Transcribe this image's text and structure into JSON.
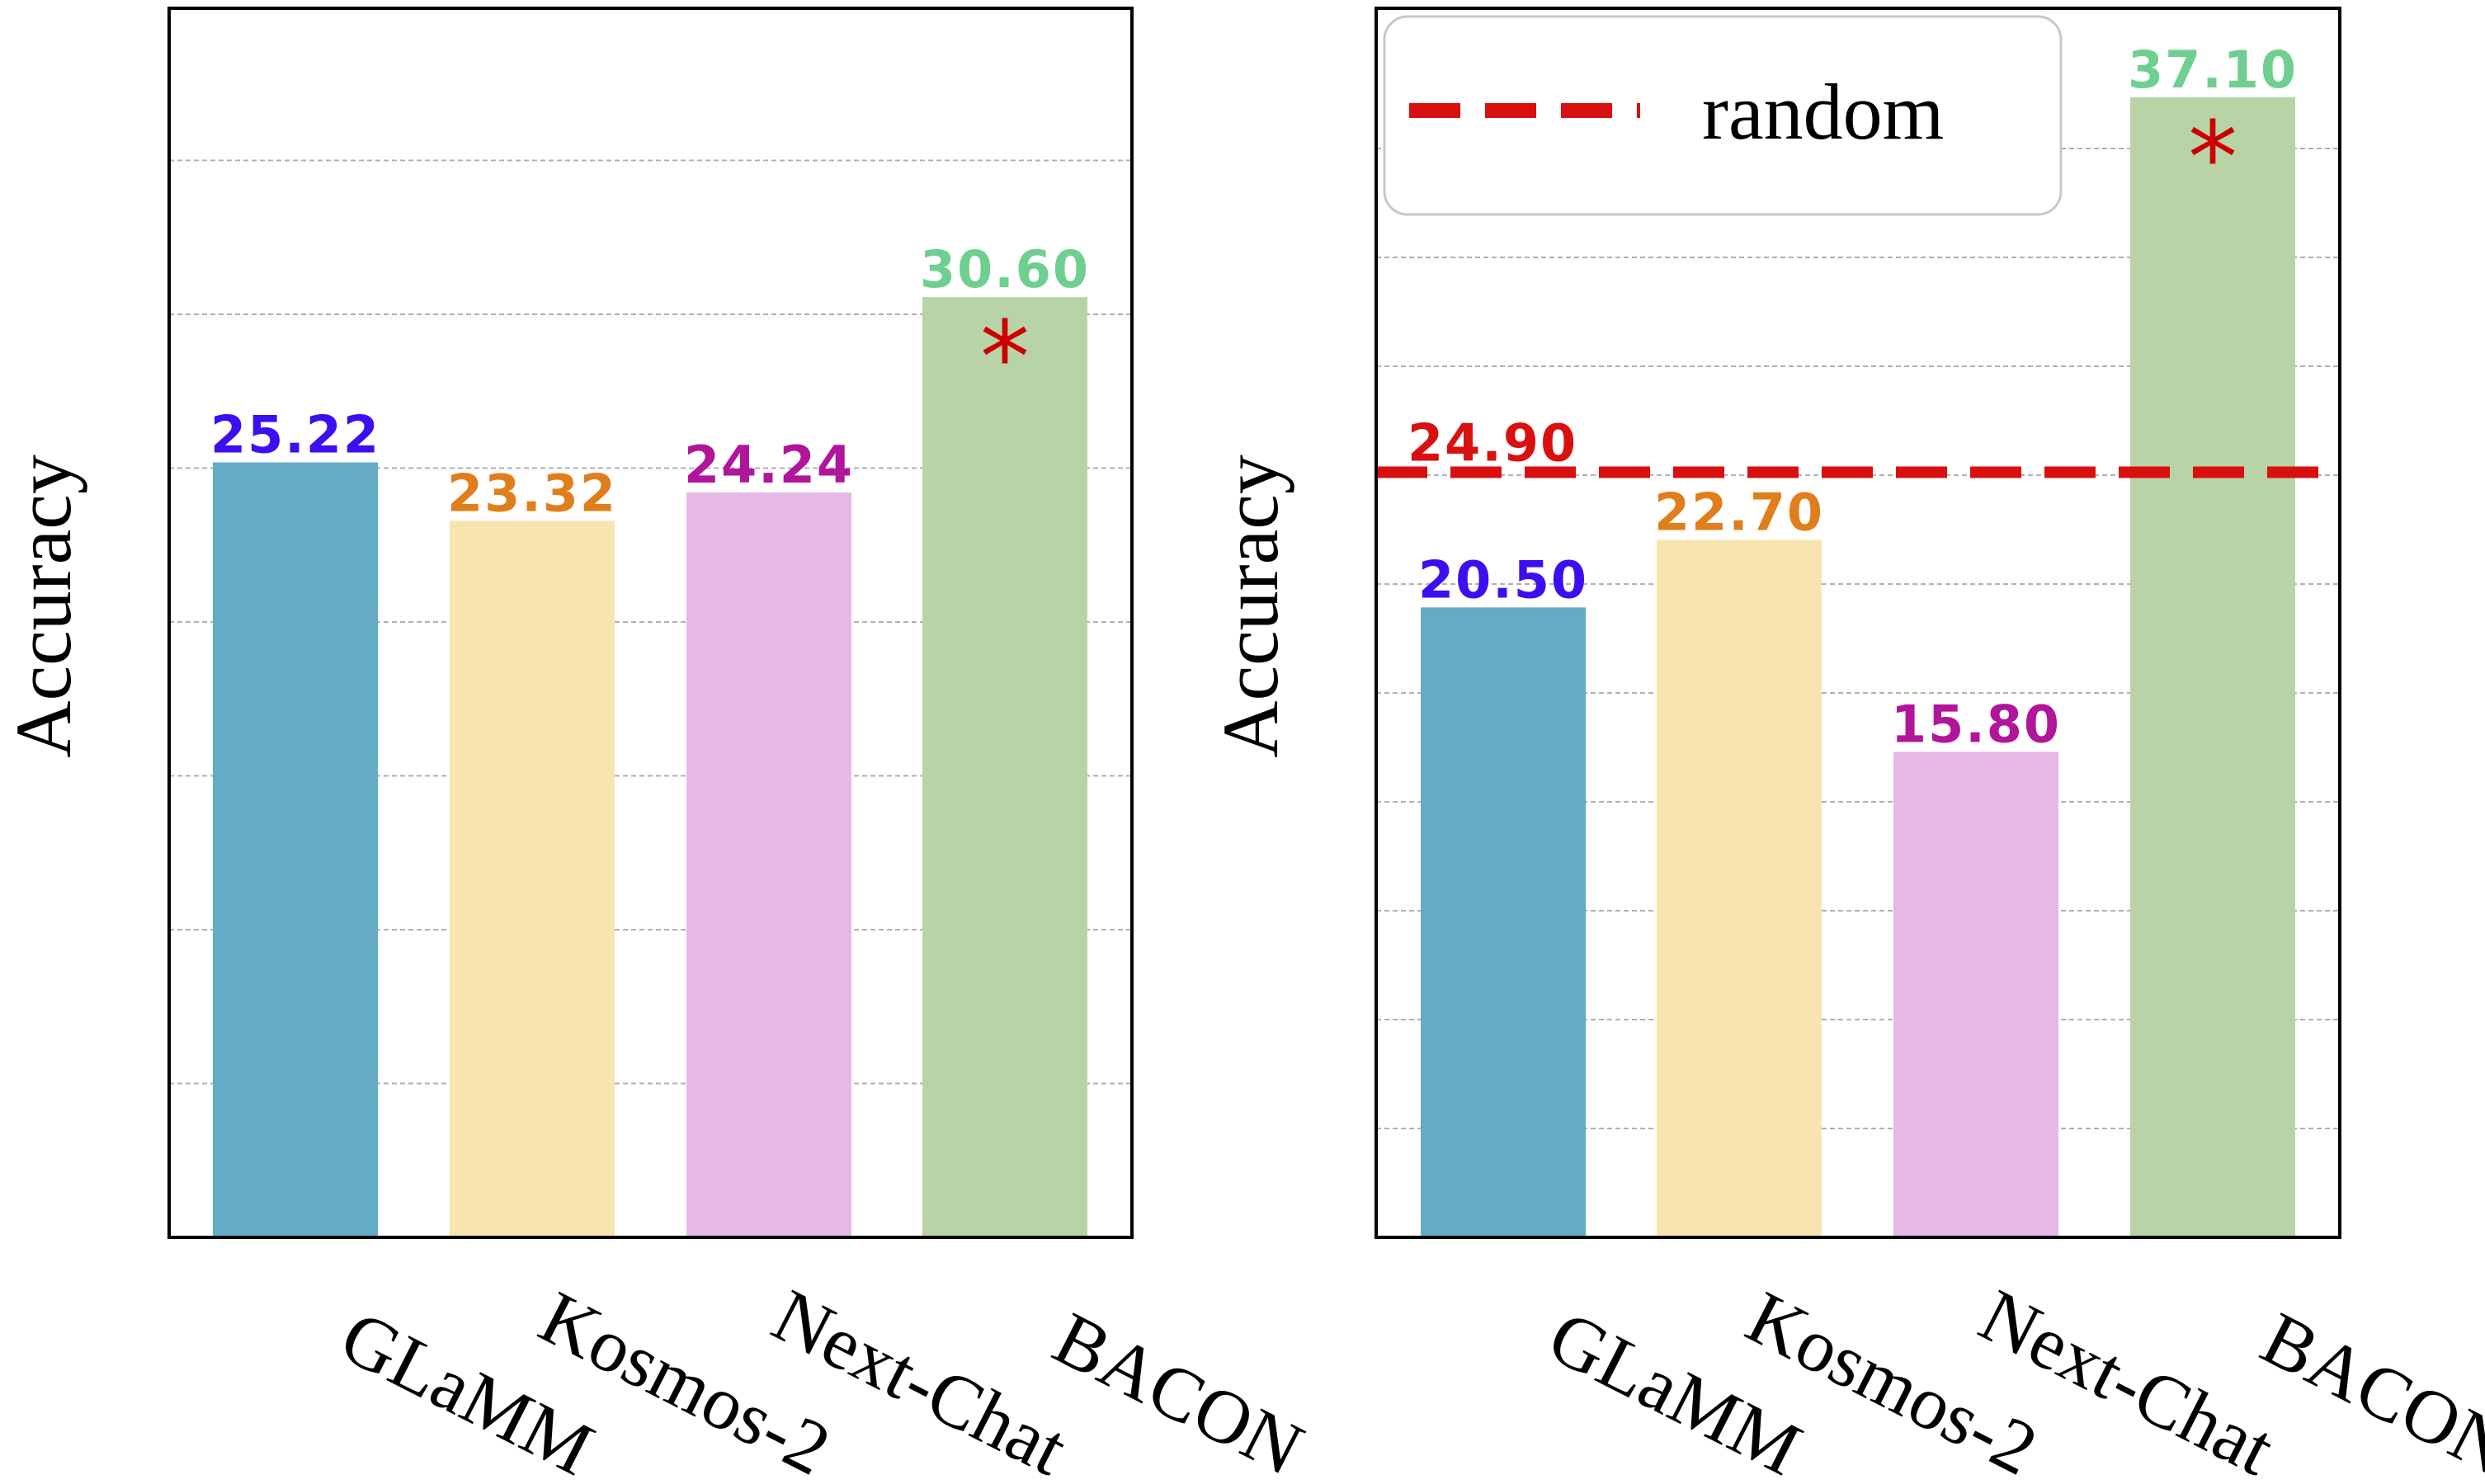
{
  "chart_data": [
    {
      "type": "bar",
      "categories": [
        "GLaMM",
        "Kosmos-2",
        "Next-Chat",
        "BACON"
      ],
      "values": [
        25.22,
        23.32,
        24.24,
        30.6
      ],
      "value_labels": [
        "25.22",
        "23.32",
        "24.24",
        "30.60"
      ],
      "ylabel": "Accuracy",
      "ylim": [
        0,
        40
      ],
      "grid": "horizontal dashed",
      "highlight": {
        "category": "BACON",
        "marker": "*"
      }
    },
    {
      "type": "bar",
      "categories": [
        "GLaMM",
        "Kosmos-2",
        "Next-Chat",
        "BACON"
      ],
      "values": [
        20.5,
        22.7,
        15.8,
        37.1
      ],
      "value_labels": [
        "20.50",
        "22.70",
        "15.80",
        "37.10"
      ],
      "ylabel": "Accuracy",
      "ylim": [
        0,
        40
      ],
      "grid": "horizontal dashed",
      "highlight": {
        "category": "BACON",
        "marker": "*"
      },
      "reference_line": {
        "name": "random",
        "value": 24.9,
        "label": "24.90",
        "style": "dashed"
      },
      "legend": {
        "entries": [
          "random"
        ],
        "placement": "top-left"
      }
    }
  ],
  "colors": {
    "bars": [
      "#63abc6",
      "#f8e4af",
      "#e6b8e8",
      "#b8d4a6"
    ],
    "value_labels": [
      "#3c0ef0",
      "#e07e1c",
      "#b0159a",
      "#6fcf90"
    ],
    "random_line": "#d91010",
    "star": "#cc0000"
  }
}
